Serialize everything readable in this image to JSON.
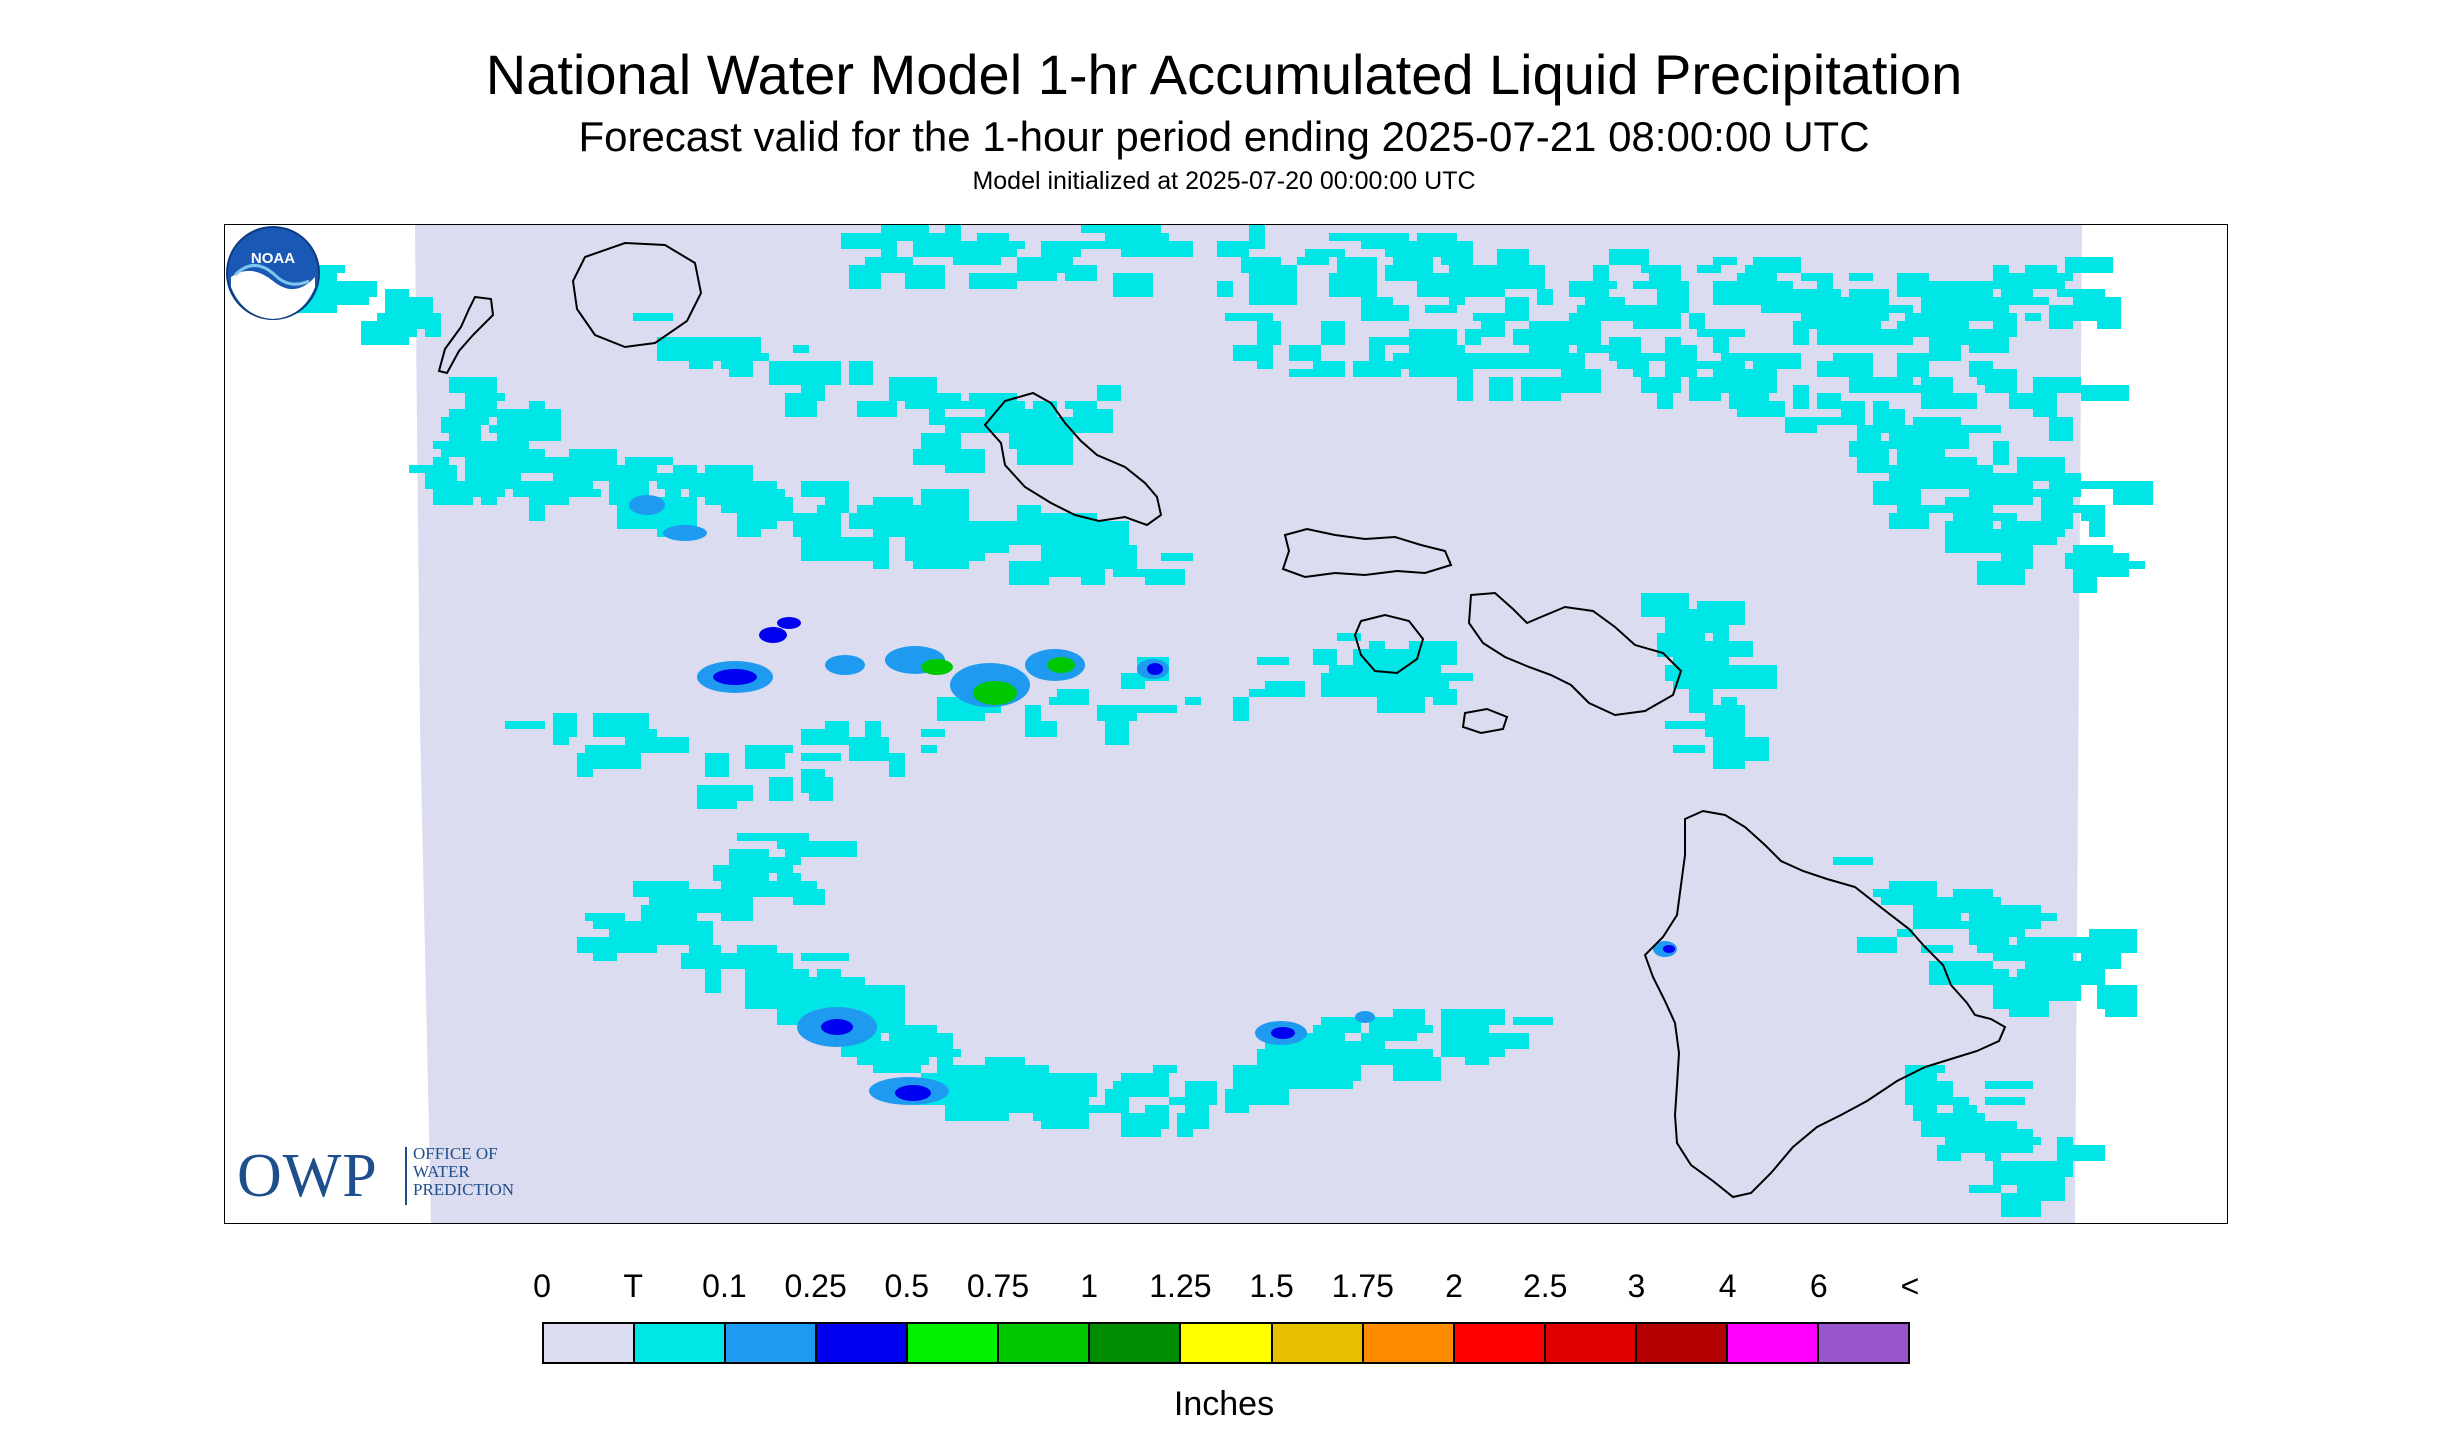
{
  "header": {
    "title": "National Water Model 1-hr Accumulated Liquid Precipitation",
    "subtitle": "Forecast valid for the 1-hour period ending 2025-07-21 08:00:00 UTC",
    "init": "Model initialized at 2025-07-20 00:00:00 UTC"
  },
  "logos": {
    "owp_short": "OWP",
    "owp_line1": "OFFICE OF",
    "owp_line2": "WATER",
    "owp_line3": "PREDICTION",
    "noaa": "NOAA"
  },
  "legend": {
    "units": "Inches",
    "ticks": [
      "0",
      "T",
      "0.1",
      "0.25",
      "0.5",
      "0.75",
      "1",
      "1.25",
      "1.5",
      "1.75",
      "2",
      "2.5",
      "3",
      "4",
      "6",
      "<"
    ],
    "colors": [
      "#dcdcf0",
      "#00e5e5",
      "#1e9bf0",
      "#0000f0",
      "#00f000",
      "#00c800",
      "#008c00",
      "#ffff00",
      "#e5bf00",
      "#ff8c00",
      "#ff0000",
      "#e00000",
      "#b40000",
      "#ff00ff",
      "#9955cc"
    ]
  },
  "colors": {
    "background": "#dcdcf0",
    "trace": "#00e5e5",
    "light": "#1e9bf0",
    "moderate": "#0000f0",
    "heavy": "#00c800"
  }
}
